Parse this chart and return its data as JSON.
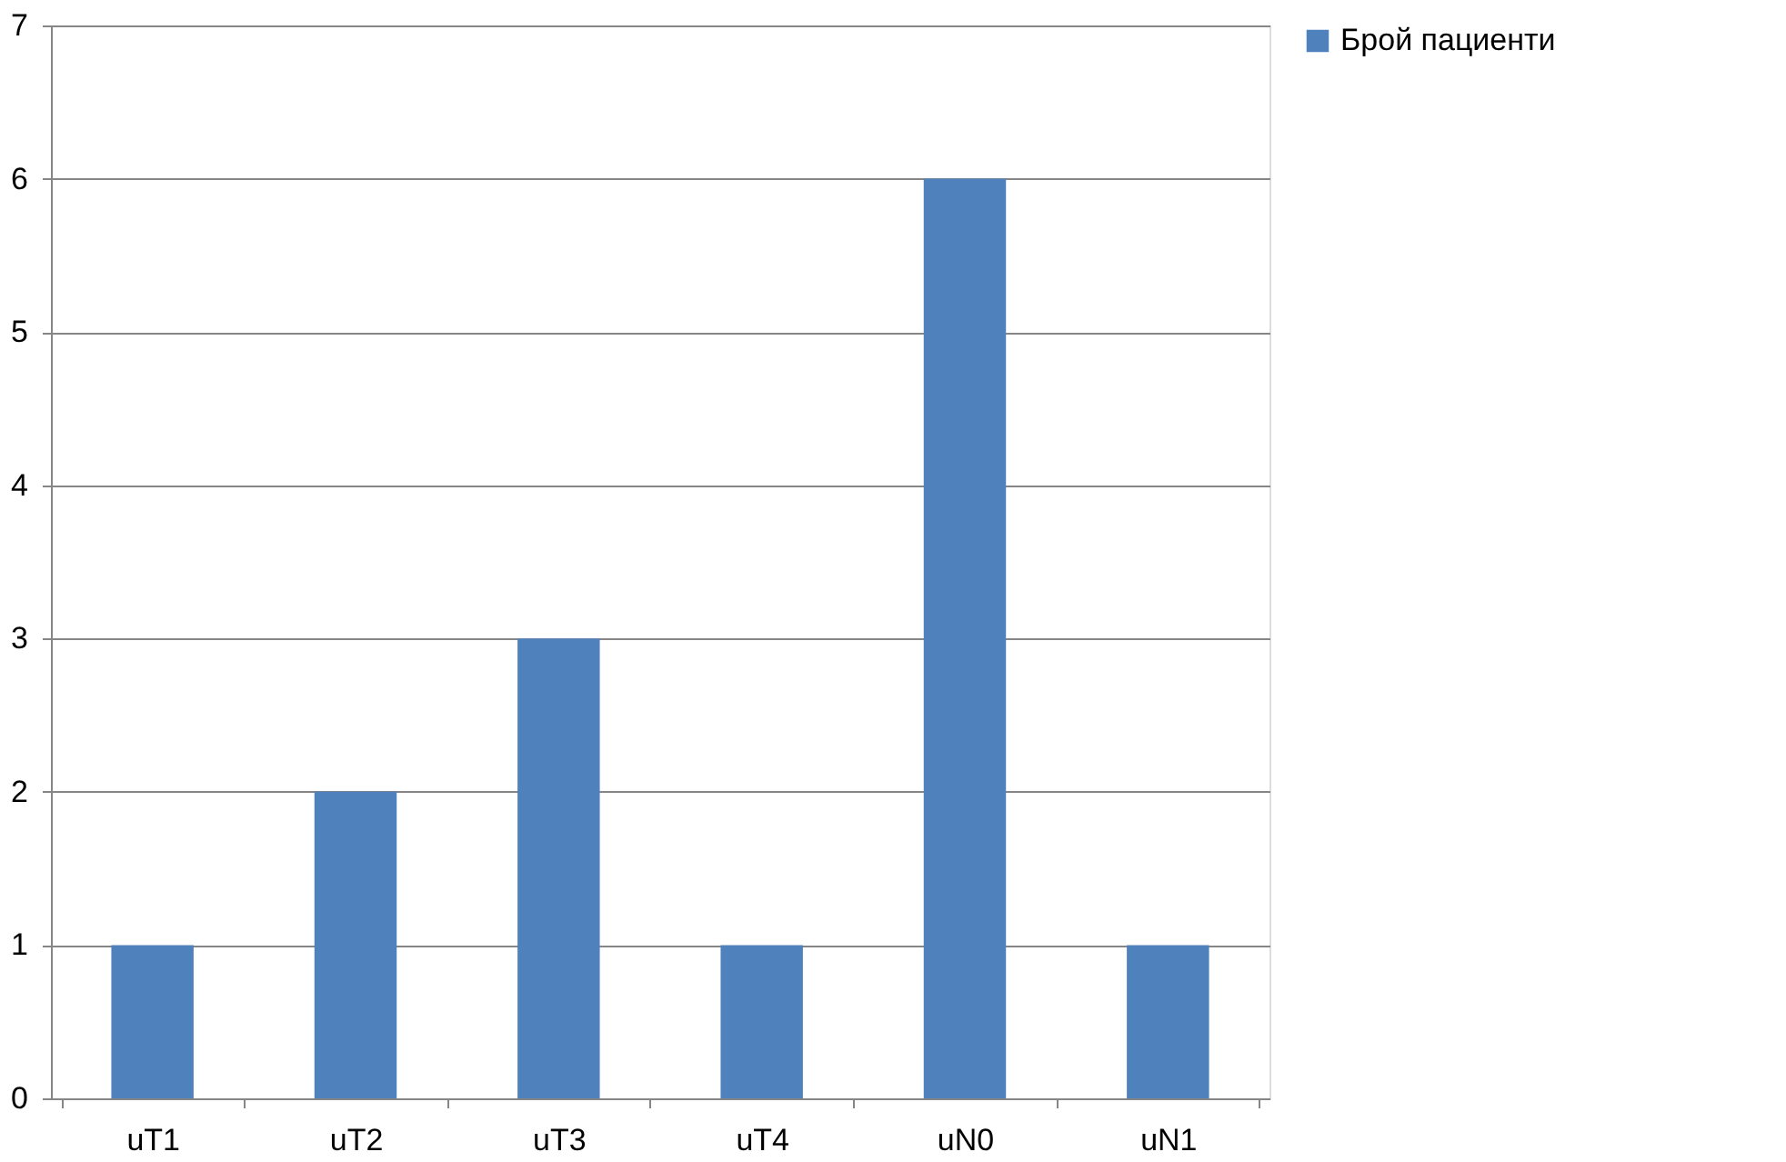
{
  "chart_data": {
    "type": "bar",
    "categories": [
      "uT1",
      "uT2",
      "uT3",
      "uT4",
      "uN0",
      "uN1"
    ],
    "series": [
      {
        "name": "Брой пациенти",
        "color": "#4f81bd",
        "values": [
          1,
          2,
          3,
          1,
          6,
          1
        ]
      }
    ],
    "ylim": [
      0,
      7
    ],
    "yticks": [
      0,
      1,
      2,
      3,
      4,
      5,
      6,
      7
    ],
    "grid": "y",
    "legend": "right"
  }
}
